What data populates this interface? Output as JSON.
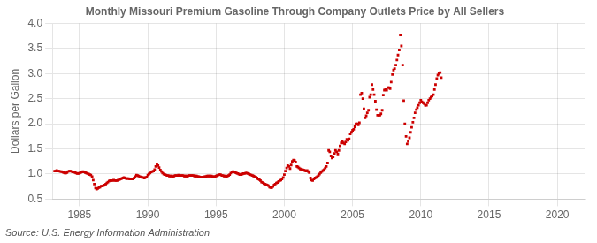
{
  "chart_data": {
    "type": "scatter",
    "title": "Monthly Missouri Premium Gasoline Through Company Outlets Price by All Sellers",
    "ylabel": "Dollars per Gallon",
    "source": "Source: U.S. Energy Information Administration",
    "color": "#cc0000",
    "marker": "square",
    "grid": true,
    "xlim": [
      1983.0,
      2022.0
    ],
    "ylim": [
      0.5,
      4.0
    ],
    "xticks": [
      1985,
      1990,
      1995,
      2000,
      2005,
      2010,
      2015,
      2020
    ],
    "yticks": [
      0.5,
      {
        "value": 1.0,
        "label": "1.0"
      },
      1.5,
      {
        "value": 2.0,
        "label": "2.0"
      },
      2.5,
      {
        "value": 3.0,
        "label": "3.0"
      },
      3.5,
      {
        "value": 4.0,
        "label": "4.0"
      }
    ],
    "x": [
      1983.17,
      1983.25,
      1983.33,
      1983.42,
      1983.5,
      1983.58,
      1983.67,
      1983.75,
      1983.83,
      1983.92,
      1984.0,
      1984.08,
      1984.17,
      1984.25,
      1984.33,
      1984.42,
      1984.5,
      1984.58,
      1984.67,
      1984.75,
      1984.83,
      1984.92,
      1985.0,
      1985.08,
      1985.17,
      1985.25,
      1985.33,
      1985.42,
      1985.5,
      1985.58,
      1985.67,
      1985.75,
      1985.83,
      1985.92,
      1986.0,
      1986.08,
      1986.17,
      1986.25,
      1986.33,
      1986.42,
      1986.5,
      1986.58,
      1986.67,
      1986.75,
      1986.83,
      1986.92,
      1987.0,
      1987.08,
      1987.17,
      1987.25,
      1987.33,
      1987.42,
      1987.5,
      1987.58,
      1987.67,
      1987.75,
      1987.83,
      1987.92,
      1988.0,
      1988.08,
      1988.17,
      1988.25,
      1988.33,
      1988.42,
      1988.5,
      1988.58,
      1988.67,
      1988.75,
      1988.83,
      1988.92,
      1989.0,
      1989.08,
      1989.17,
      1989.25,
      1989.33,
      1989.42,
      1989.5,
      1989.58,
      1989.67,
      1989.75,
      1989.83,
      1989.92,
      1990.0,
      1990.08,
      1990.17,
      1990.25,
      1990.33,
      1990.42,
      1990.5,
      1990.58,
      1990.67,
      1990.75,
      1990.83,
      1990.92,
      1991.0,
      1991.08,
      1991.17,
      1991.25,
      1991.33,
      1991.42,
      1991.5,
      1991.58,
      1991.67,
      1991.75,
      1991.83,
      1991.92,
      1992.0,
      1992.08,
      1992.17,
      1992.25,
      1992.33,
      1992.42,
      1992.5,
      1992.58,
      1992.67,
      1992.75,
      1992.83,
      1992.92,
      1993.0,
      1993.08,
      1993.17,
      1993.25,
      1993.33,
      1993.42,
      1993.5,
      1993.58,
      1993.67,
      1993.75,
      1993.83,
      1993.92,
      1994.0,
      1994.08,
      1994.17,
      1994.25,
      1994.33,
      1994.42,
      1994.5,
      1994.58,
      1994.67,
      1994.75,
      1994.83,
      1994.92,
      1995.0,
      1995.08,
      1995.17,
      1995.25,
      1995.33,
      1995.42,
      1995.5,
      1995.58,
      1995.67,
      1995.75,
      1995.83,
      1995.92,
      1996.0,
      1996.08,
      1996.17,
      1996.25,
      1996.33,
      1996.42,
      1996.5,
      1996.58,
      1996.67,
      1996.75,
      1996.83,
      1996.92,
      1997.0,
      1997.08,
      1997.17,
      1997.25,
      1997.33,
      1997.42,
      1997.5,
      1997.58,
      1997.67,
      1997.75,
      1997.83,
      1997.92,
      1998.0,
      1998.08,
      1998.17,
      1998.25,
      1998.33,
      1998.42,
      1998.5,
      1998.58,
      1998.67,
      1998.75,
      1998.83,
      1998.92,
      1999.0,
      1999.08,
      1999.17,
      1999.25,
      1999.33,
      1999.42,
      1999.5,
      1999.58,
      1999.67,
      1999.75,
      1999.83,
      1999.92,
      2000.0,
      2000.08,
      2000.17,
      2000.25,
      2000.33,
      2000.42,
      2000.5,
      2000.58,
      2000.67,
      2000.75,
      2000.83,
      2000.92,
      2001.0,
      2001.08,
      2001.17,
      2001.25,
      2001.33,
      2001.42,
      2001.5,
      2001.58,
      2001.67,
      2001.75,
      2001.83,
      2001.92,
      2002.0,
      2002.08,
      2002.17,
      2002.25,
      2002.33,
      2002.42,
      2002.5,
      2002.58,
      2002.67,
      2002.75,
      2002.83,
      2002.92,
      2003.0,
      2003.08,
      2003.17,
      2003.25,
      2003.33,
      2003.42,
      2003.5,
      2003.58,
      2003.67,
      2003.75,
      2003.83,
      2003.92,
      2004.0,
      2004.08,
      2004.17,
      2004.25,
      2004.33,
      2004.42,
      2004.5,
      2004.58,
      2004.67,
      2004.75,
      2004.83,
      2004.92,
      2005.0,
      2005.08,
      2005.17,
      2005.25,
      2005.33,
      2005.42,
      2005.5,
      2005.58,
      2005.67,
      2005.75,
      2005.83,
      2005.92,
      2006.0,
      2006.08,
      2006.17,
      2006.25,
      2006.33,
      2006.42,
      2006.5,
      2006.58,
      2006.67,
      2006.75,
      2006.83,
      2006.92,
      2007.0,
      2007.08,
      2007.17,
      2007.25,
      2007.33,
      2007.42,
      2007.5,
      2007.58,
      2007.67,
      2007.75,
      2007.83,
      2007.92,
      2008.0,
      2008.08,
      2008.17,
      2008.25,
      2008.33,
      2008.42,
      2008.5,
      2008.58,
      2008.67,
      2008.75,
      2008.83,
      2008.92,
      2009.0,
      2009.08,
      2009.17,
      2009.25,
      2009.33,
      2009.42,
      2009.5,
      2009.58,
      2009.67,
      2009.75,
      2009.83,
      2009.92,
      2010.0,
      2010.08,
      2010.17,
      2010.25,
      2010.33,
      2010.42,
      2010.5,
      2010.58,
      2010.67,
      2010.75,
      2010.83,
      2010.92,
      2011.0,
      2011.08,
      2011.17,
      2011.25,
      2011.33,
      2011.42,
      2011.5
    ],
    "values": [
      1.06,
      1.06,
      1.07,
      1.06,
      1.06,
      1.05,
      1.05,
      1.04,
      1.03,
      1.02,
      1.02,
      1.03,
      1.05,
      1.06,
      1.06,
      1.05,
      1.04,
      1.04,
      1.03,
      1.02,
      1.01,
      1.01,
      1.02,
      1.03,
      1.04,
      1.05,
      1.04,
      1.03,
      1.02,
      1.01,
      1.0,
      0.99,
      0.98,
      0.95,
      0.88,
      0.8,
      0.72,
      0.7,
      0.71,
      0.73,
      0.74,
      0.76,
      0.76,
      0.77,
      0.78,
      0.8,
      0.82,
      0.84,
      0.86,
      0.87,
      0.87,
      0.87,
      0.88,
      0.87,
      0.87,
      0.87,
      0.88,
      0.89,
      0.9,
      0.91,
      0.92,
      0.93,
      0.92,
      0.91,
      0.91,
      0.91,
      0.9,
      0.9,
      0.9,
      0.9,
      0.92,
      0.95,
      0.98,
      0.97,
      0.96,
      0.95,
      0.94,
      0.93,
      0.93,
      0.92,
      0.93,
      0.94,
      0.98,
      1.0,
      1.02,
      1.04,
      1.05,
      1.06,
      1.09,
      1.15,
      1.19,
      1.17,
      1.13,
      1.08,
      1.05,
      1.02,
      1.0,
      0.99,
      0.98,
      0.97,
      0.97,
      0.96,
      0.96,
      0.96,
      0.95,
      0.96,
      0.97,
      0.97,
      0.97,
      0.98,
      0.97,
      0.97,
      0.97,
      0.97,
      0.96,
      0.96,
      0.96,
      0.96,
      0.97,
      0.97,
      0.97,
      0.97,
      0.97,
      0.96,
      0.96,
      0.96,
      0.95,
      0.95,
      0.94,
      0.94,
      0.94,
      0.94,
      0.95,
      0.95,
      0.96,
      0.96,
      0.96,
      0.96,
      0.96,
      0.95,
      0.95,
      0.95,
      0.96,
      0.97,
      0.98,
      0.99,
      0.99,
      0.97,
      0.97,
      0.96,
      0.96,
      0.95,
      0.96,
      0.97,
      0.99,
      1.02,
      1.04,
      1.05,
      1.04,
      1.03,
      1.02,
      1.01,
      1.0,
      0.99,
      0.99,
      1.0,
      1.01,
      1.01,
      1.02,
      1.02,
      1.01,
      1.0,
      0.99,
      0.98,
      0.97,
      0.96,
      0.95,
      0.94,
      0.92,
      0.9,
      0.89,
      0.87,
      0.84,
      0.83,
      0.81,
      0.8,
      0.79,
      0.78,
      0.77,
      0.74,
      0.73,
      0.73,
      0.75,
      0.78,
      0.8,
      0.82,
      0.83,
      0.85,
      0.87,
      0.88,
      0.9,
      0.93,
      0.99,
      1.06,
      1.12,
      1.17,
      1.15,
      1.11,
      1.18,
      1.25,
      1.28,
      1.27,
      1.24,
      1.15,
      1.14,
      1.12,
      1.1,
      1.08,
      1.09,
      1.08,
      1.07,
      1.06,
      1.07,
      1.05,
      1.03,
      0.92,
      0.88,
      0.87,
      0.9,
      0.92,
      0.93,
      0.95,
      0.97,
      1.0,
      1.03,
      1.05,
      1.07,
      1.09,
      1.12,
      1.15,
      1.22,
      1.47,
      1.44,
      1.36,
      1.32,
      1.34,
      1.41,
      1.47,
      1.44,
      1.4,
      1.47,
      1.56,
      1.62,
      1.65,
      1.62,
      1.6,
      1.64,
      1.69,
      1.67,
      1.7,
      1.8,
      1.83,
      1.87,
      1.89,
      1.94,
      2.0,
      2.0,
      1.98,
      2.02,
      2.58,
      2.61,
      2.5,
      2.3,
      2.12,
      2.16,
      2.22,
      2.27,
      2.53,
      2.58,
      2.78,
      2.68,
      2.58,
      2.45,
      2.28,
      2.17,
      2.17,
      2.17,
      2.2,
      2.27,
      2.57,
      2.67,
      2.68,
      2.67,
      2.72,
      2.72,
      2.7,
      2.83,
      2.98,
      3.07,
      3.1,
      3.17,
      3.27,
      3.37,
      3.47,
      3.77,
      3.55,
      3.17,
      2.46,
      2.0,
      1.75,
      1.6,
      1.65,
      1.72,
      1.83,
      1.93,
      2.03,
      2.12,
      2.22,
      2.28,
      2.32,
      2.37,
      2.42,
      2.47,
      2.44,
      2.42,
      2.4,
      2.37,
      2.37,
      2.42,
      2.47,
      2.5,
      2.53,
      2.55,
      2.58,
      2.68,
      2.78,
      2.9,
      2.97,
      3.0,
      3.02,
      2.92
    ]
  }
}
